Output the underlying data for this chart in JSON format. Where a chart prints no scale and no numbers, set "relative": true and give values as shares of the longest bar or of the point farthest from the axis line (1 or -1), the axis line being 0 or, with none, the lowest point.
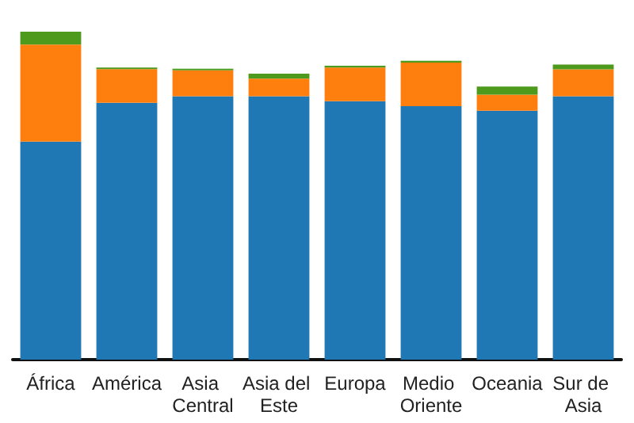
{
  "chart_data": {
    "type": "bar",
    "stacked": true,
    "relative": true,
    "categories": [
      "África",
      "América",
      "Asia Central",
      "Asia del Este",
      "Europa",
      "Medio Oriente",
      "Oceania",
      "Sur de Asia"
    ],
    "series": [
      {
        "color": "#1f77b4",
        "values": [
          0.665,
          0.783,
          0.803,
          0.803,
          0.788,
          0.773,
          0.759,
          0.803
        ]
      },
      {
        "color": "#ff7f0e",
        "values": [
          0.296,
          0.103,
          0.079,
          0.054,
          0.103,
          0.133,
          0.049,
          0.082
        ]
      },
      {
        "color": "#4d9a1c",
        "values": [
          0.039,
          0.005,
          0.005,
          0.015,
          0.005,
          0.005,
          0.025,
          0.015
        ]
      }
    ]
  }
}
